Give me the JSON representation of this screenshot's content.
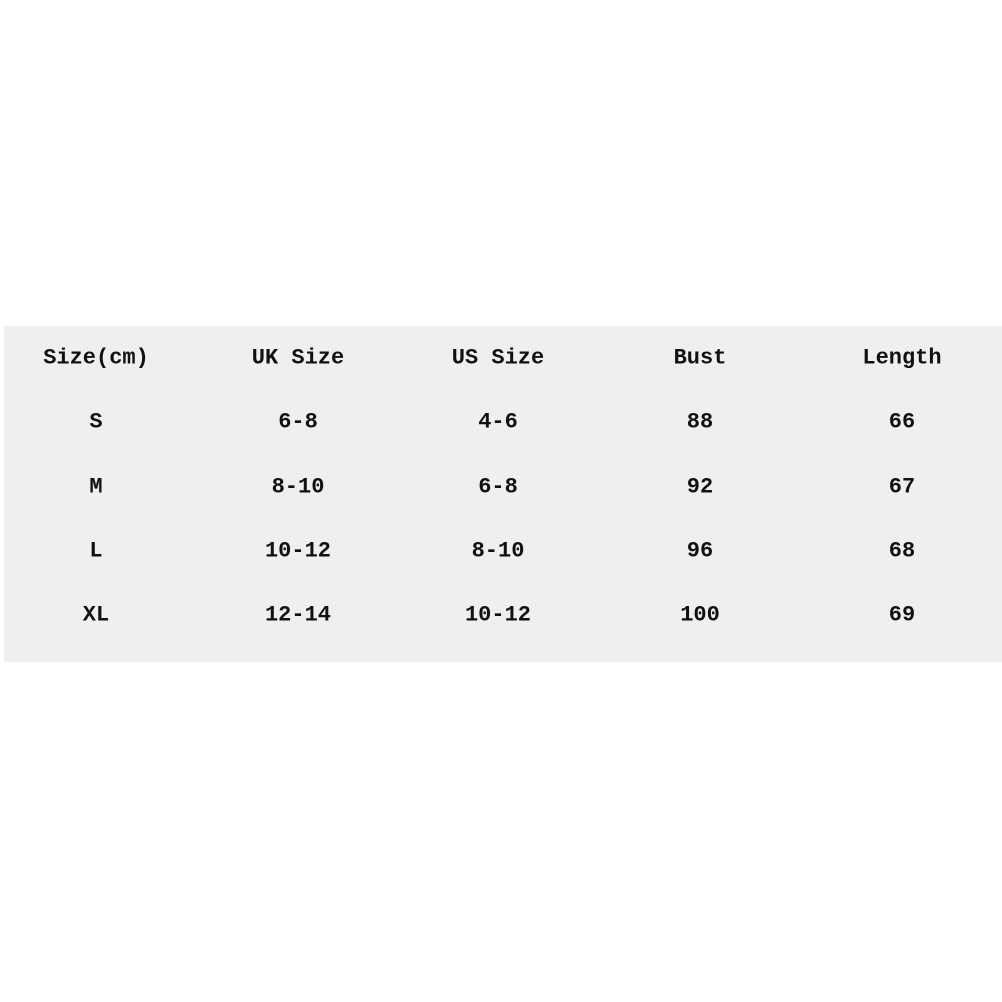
{
  "table": {
    "header": [
      "Size(cm)",
      "UK Size",
      "US Size",
      "Bust",
      "Length"
    ],
    "rows": [
      [
        "S",
        "6-8",
        "4-6",
        "88",
        "66"
      ],
      [
        "M",
        "8-10",
        "6-8",
        "92",
        "67"
      ],
      [
        "L",
        "10-12",
        "8-10",
        "96",
        "68"
      ],
      [
        "XL",
        "12-14",
        "10-12",
        "100",
        "69"
      ]
    ]
  }
}
